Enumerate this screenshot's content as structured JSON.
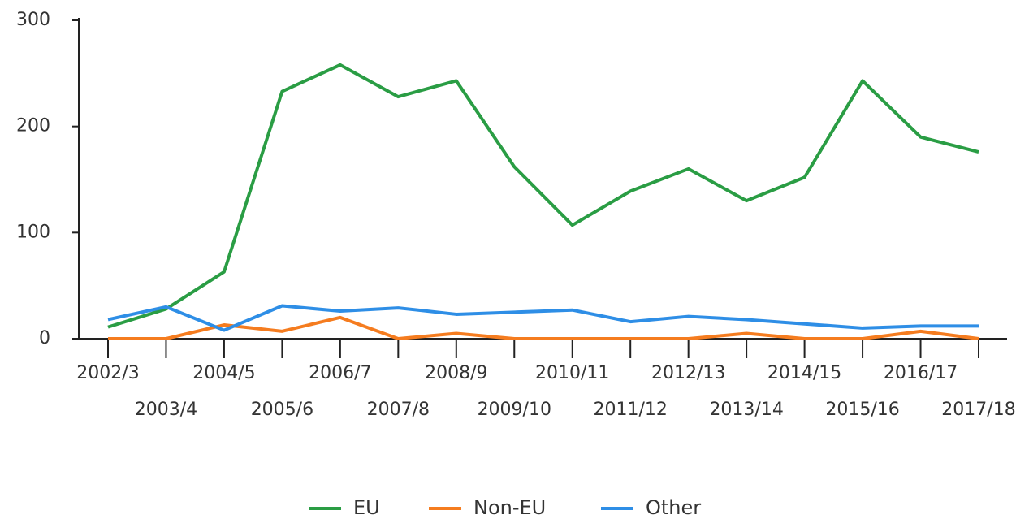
{
  "chart_data": {
    "type": "line",
    "categories": [
      "2002/3",
      "2003/4",
      "2004/5",
      "2005/6",
      "2006/7",
      "2007/8",
      "2008/9",
      "2009/10",
      "2010/11",
      "2011/12",
      "2012/13",
      "2013/14",
      "2014/15",
      "2015/16",
      "2016/17",
      "2017/18"
    ],
    "series": [
      {
        "name": "EU",
        "color": "#2a9d44",
        "values": [
          11,
          28,
          63,
          233,
          258,
          228,
          243,
          162,
          107,
          139,
          160,
          130,
          152,
          243,
          190,
          176
        ]
      },
      {
        "name": "Non-EU",
        "color": "#f57c1f",
        "values": [
          0,
          0,
          13,
          7,
          20,
          0,
          5,
          0,
          0,
          0,
          0,
          5,
          0,
          0,
          7,
          0
        ]
      },
      {
        "name": "Other",
        "color": "#2e8ee6",
        "values": [
          18,
          30,
          8,
          31,
          26,
          29,
          23,
          25,
          27,
          16,
          21,
          18,
          14,
          10,
          12,
          12
        ]
      }
    ],
    "ylim": [
      0,
      300
    ],
    "yticks": [
      0,
      100,
      200,
      300
    ],
    "legend": "bottom"
  }
}
